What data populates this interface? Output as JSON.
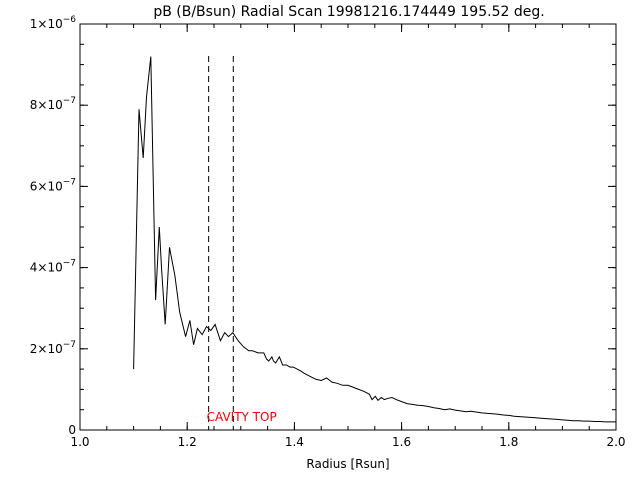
{
  "chart_data": {
    "type": "line",
    "title": "pB (B/Bsun) Radial Scan 19981216.174449 195.52 deg.",
    "xlabel": "Radius [Rsun]",
    "ylabel": "",
    "xlim": [
      1.0,
      2.0
    ],
    "ylim": [
      0,
      1e-06
    ],
    "grid": false,
    "x_ticks": [
      {
        "value": 1.0,
        "label": "1.0"
      },
      {
        "value": 1.2,
        "label": "1.2"
      },
      {
        "value": 1.4,
        "label": "1.4"
      },
      {
        "value": 1.6,
        "label": "1.6"
      },
      {
        "value": 1.8,
        "label": "1.8"
      },
      {
        "value": 2.0,
        "label": "2.0"
      }
    ],
    "y_ticks": [
      {
        "value": 0,
        "mantissa": "0",
        "exponent": ""
      },
      {
        "value": 2e-07,
        "mantissa": "2×10",
        "exponent": "−7"
      },
      {
        "value": 4e-07,
        "mantissa": "4×10",
        "exponent": "−7"
      },
      {
        "value": 6e-07,
        "mantissa": "6×10",
        "exponent": "−7"
      },
      {
        "value": 8e-07,
        "mantissa": "8×10",
        "exponent": "−7"
      },
      {
        "value": 1e-06,
        "mantissa": "1×10",
        "exponent": "−6"
      }
    ],
    "series": [
      {
        "color": "#000000",
        "x": [
          1.1,
          1.11,
          1.118,
          1.124,
          1.132,
          1.141,
          1.148,
          1.152,
          1.159,
          1.167,
          1.177,
          1.186,
          1.197,
          1.205,
          1.212,
          1.219,
          1.228,
          1.236,
          1.244,
          1.252,
          1.262,
          1.27,
          1.277,
          1.285,
          1.295,
          1.305,
          1.315,
          1.322,
          1.332,
          1.343,
          1.348,
          1.352,
          1.358,
          1.361,
          1.365,
          1.372,
          1.378,
          1.385,
          1.392,
          1.398,
          1.405,
          1.412,
          1.418,
          1.425,
          1.432,
          1.44,
          1.45,
          1.46,
          1.47,
          1.48,
          1.49,
          1.5,
          1.51,
          1.52,
          1.53,
          1.54,
          1.545,
          1.551,
          1.556,
          1.562,
          1.568,
          1.575,
          1.582,
          1.59,
          1.6,
          1.61,
          1.62,
          1.63,
          1.64,
          1.65,
          1.66,
          1.67,
          1.68,
          1.69,
          1.7,
          1.71,
          1.72,
          1.73,
          1.74,
          1.75,
          1.76,
          1.77,
          1.78,
          1.79,
          1.8,
          1.81,
          1.82,
          1.83,
          1.84,
          1.85,
          1.86,
          1.87,
          1.88,
          1.89,
          1.9,
          1.91,
          1.92,
          1.93,
          1.94,
          1.95,
          1.96,
          1.97,
          1.98,
          1.99,
          2.0
        ],
        "y": [
          1.5e-07,
          7.9e-07,
          6.7e-07,
          8.2e-07,
          9.2e-07,
          3.2e-07,
          5e-07,
          4e-07,
          2.6e-07,
          4.5e-07,
          3.8e-07,
          2.9e-07,
          2.3e-07,
          2.7e-07,
          2.1e-07,
          2.5e-07,
          2.35e-07,
          2.55e-07,
          2.45e-07,
          2.6e-07,
          2.2e-07,
          2.4e-07,
          2.3e-07,
          2.4e-07,
          2.2e-07,
          2.05e-07,
          1.95e-07,
          1.95e-07,
          1.9e-07,
          1.9e-07,
          1.75e-07,
          1.7e-07,
          1.8e-07,
          1.7e-07,
          1.65e-07,
          1.8e-07,
          1.6e-07,
          1.6e-07,
          1.55e-07,
          1.55e-07,
          1.5e-07,
          1.45e-07,
          1.4e-07,
          1.35e-07,
          1.3e-07,
          1.25e-07,
          1.22e-07,
          1.28e-07,
          1.18e-07,
          1.15e-07,
          1.1e-07,
          1.1e-07,
          1.05e-07,
          1e-07,
          9.5e-08,
          8.8e-08,
          7.5e-08,
          8.3e-08,
          7.3e-08,
          8e-08,
          7.5e-08,
          7.8e-08,
          8e-08,
          7.5e-08,
          7e-08,
          6.5e-08,
          6.3e-08,
          6.1e-08,
          6e-08,
          5.8e-08,
          5.5e-08,
          5.3e-08,
          5e-08,
          5.2e-08,
          4.9e-08,
          4.7e-08,
          4.5e-08,
          4.6e-08,
          4.4e-08,
          4.2e-08,
          4.1e-08,
          4e-08,
          3.9e-08,
          3.7e-08,
          3.6e-08,
          3.4e-08,
          3.3e-08,
          3.2e-08,
          3.1e-08,
          3e-08,
          2.9e-08,
          2.8e-08,
          2.7e-08,
          2.6e-08,
          2.5e-08,
          2.4e-08,
          2.3e-08,
          2.3e-08,
          2.2e-08,
          2.2e-08,
          2.1e-08,
          2.1e-08,
          2e-08,
          2e-08,
          2e-08
        ]
      }
    ],
    "vlines": [
      {
        "x": 1.24,
        "style": "dashed",
        "color": "#000000"
      },
      {
        "x": 1.286,
        "style": "dashed",
        "color": "#000000"
      }
    ],
    "annotation": {
      "text": "CAVITY TOP",
      "x": 1.24,
      "color": "#ff0000"
    }
  }
}
